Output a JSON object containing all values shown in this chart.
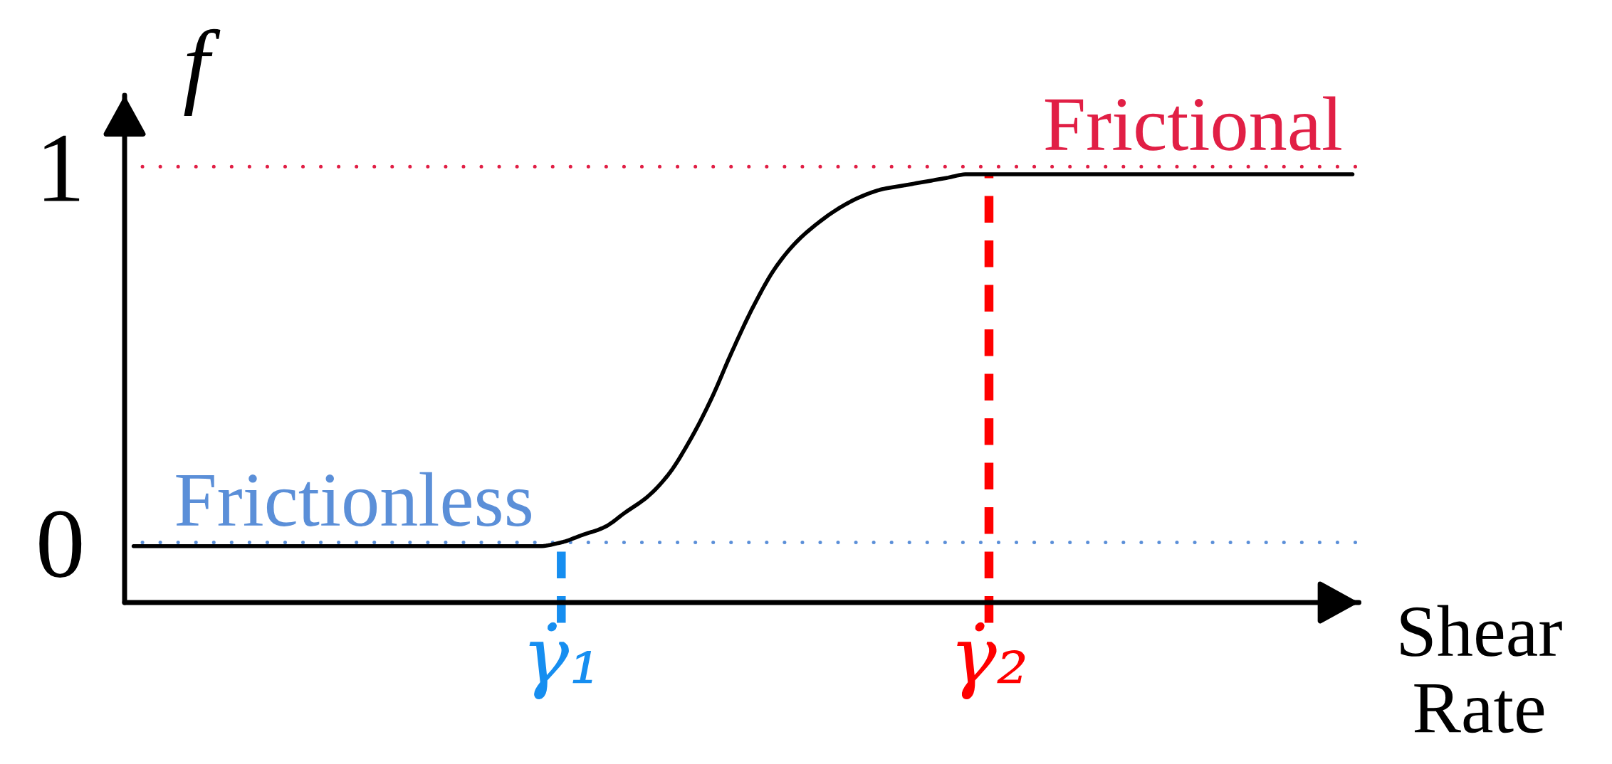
{
  "chart_data": {
    "type": "line",
    "ylabel": "f",
    "xlabel": "Shear\nRate",
    "categories": [
      null,
      null,
      null,
      null,
      null,
      null,
      null,
      null,
      null,
      null,
      null,
      null,
      null,
      null,
      null,
      null,
      null,
      null,
      null,
      null,
      "γ̇₁",
      null,
      null,
      null,
      null,
      null,
      null,
      null,
      null,
      null,
      null,
      null,
      null,
      null,
      null,
      null,
      null,
      null,
      null,
      null,
      "γ̇₂",
      null,
      null,
      null,
      null,
      null,
      null,
      null,
      null,
      null,
      null,
      null,
      null,
      null,
      null,
      null,
      null,
      null
    ],
    "series": [
      {
        "color": "#000000",
        "values": [
          -0.01,
          -0.01,
          -0.01,
          -0.01,
          -0.01,
          -0.01,
          -0.01,
          -0.01,
          -0.01,
          -0.01,
          -0.01,
          -0.01,
          -0.01,
          -0.01,
          -0.01,
          -0.01,
          -0.01,
          -0.01,
          -0.01,
          -0.01,
          0,
          0.02,
          0.04,
          0.08,
          0.12,
          0.18,
          0.27,
          0.38,
          0.51,
          0.63,
          0.73,
          0.8,
          0.85,
          0.89,
          0.92,
          0.94,
          0.95,
          0.96,
          0.97,
          0.98,
          0.98,
          0.98,
          0.98,
          0.98,
          0.98,
          0.98,
          0.98,
          0.98,
          0.98,
          0.98,
          0.98,
          0.98,
          0.98,
          0.98,
          0.98,
          0.98,
          0.98,
          0.98
        ]
      }
    ],
    "ylim": [
      -0.16,
      1.19
    ],
    "yticks": [
      0,
      1
    ],
    "line_style": "solid",
    "ref_lines": [
      {
        "axis": "y",
        "value": 0,
        "label": "Frictionless",
        "color": "#5b8fd8",
        "line_style": "dotted"
      },
      {
        "axis": "y",
        "value": 1,
        "label": "Frictional",
        "color": "#e11f45",
        "line_style": "dotted"
      },
      {
        "axis": "x",
        "value": "γ̇₁",
        "color": "#168ef0",
        "line_style": "dashed"
      },
      {
        "axis": "x",
        "value": "γ̇₂",
        "color": "#ff0000",
        "line_style": "dashed"
      }
    ]
  }
}
